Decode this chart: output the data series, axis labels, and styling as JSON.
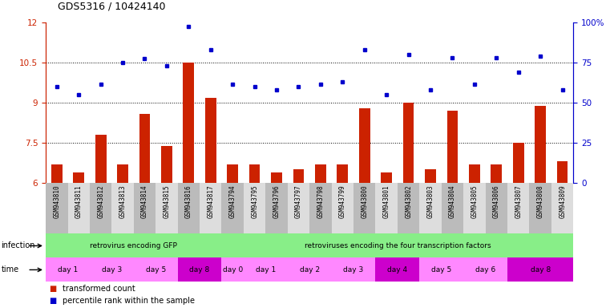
{
  "title": "GDS5316 / 10424140",
  "samples": [
    "GSM943810",
    "GSM943811",
    "GSM943812",
    "GSM943813",
    "GSM943814",
    "GSM943815",
    "GSM943816",
    "GSM943817",
    "GSM943794",
    "GSM943795",
    "GSM943796",
    "GSM943797",
    "GSM943798",
    "GSM943799",
    "GSM943800",
    "GSM943801",
    "GSM943802",
    "GSM943803",
    "GSM943804",
    "GSM943805",
    "GSM943806",
    "GSM943807",
    "GSM943808",
    "GSM943809"
  ],
  "red_values": [
    6.7,
    6.4,
    7.8,
    6.7,
    8.6,
    7.4,
    10.5,
    9.2,
    6.7,
    6.7,
    6.4,
    6.5,
    6.7,
    6.7,
    8.8,
    6.4,
    9.0,
    6.5,
    8.7,
    6.7,
    6.7,
    7.5,
    8.9,
    6.8
  ],
  "blue_values": [
    9.6,
    9.3,
    9.7,
    10.5,
    10.65,
    10.4,
    11.85,
    11.0,
    9.7,
    9.6,
    9.5,
    9.6,
    9.7,
    9.8,
    11.0,
    9.3,
    10.8,
    9.5,
    10.7,
    9.7,
    10.7,
    10.15,
    10.75,
    9.5
  ],
  "ylim": [
    6,
    12
  ],
  "yticks_left": [
    6,
    7.5,
    9,
    10.5,
    12
  ],
  "ytick_left_labels": [
    "6",
    "7.5",
    "9",
    "10.5",
    "12"
  ],
  "ytick_right_labels": [
    "0",
    "25",
    "50",
    "75",
    "100%"
  ],
  "bar_color": "#CC2200",
  "dot_color": "#0000CC",
  "bg_color": "#FFFFFF",
  "label_red": "transformed count",
  "label_blue": "percentile rank within the sample",
  "infection_groups": [
    {
      "label": "retrovirus encoding GFP",
      "start": 0,
      "end": 8,
      "color": "#88EE88"
    },
    {
      "label": "retroviruses encoding the four transcription factors",
      "start": 8,
      "end": 24,
      "color": "#88EE88"
    }
  ],
  "time_groups": [
    {
      "label": "day 1",
      "start": 0,
      "end": 2,
      "color": "#FF88FF"
    },
    {
      "label": "day 3",
      "start": 2,
      "end": 4,
      "color": "#FF88FF"
    },
    {
      "label": "day 5",
      "start": 4,
      "end": 6,
      "color": "#FF88FF"
    },
    {
      "label": "day 8",
      "start": 6,
      "end": 8,
      "color": "#CC00CC"
    },
    {
      "label": "day 0",
      "start": 8,
      "end": 9,
      "color": "#FF88FF"
    },
    {
      "label": "day 1",
      "start": 9,
      "end": 11,
      "color": "#FF88FF"
    },
    {
      "label": "day 2",
      "start": 11,
      "end": 13,
      "color": "#FF88FF"
    },
    {
      "label": "day 3",
      "start": 13,
      "end": 15,
      "color": "#FF88FF"
    },
    {
      "label": "day 4",
      "start": 15,
      "end": 17,
      "color": "#CC00CC"
    },
    {
      "label": "day 5",
      "start": 17,
      "end": 19,
      "color": "#FF88FF"
    },
    {
      "label": "day 6",
      "start": 19,
      "end": 21,
      "color": "#FF88FF"
    },
    {
      "label": "day 8",
      "start": 21,
      "end": 24,
      "color": "#CC00CC"
    }
  ]
}
